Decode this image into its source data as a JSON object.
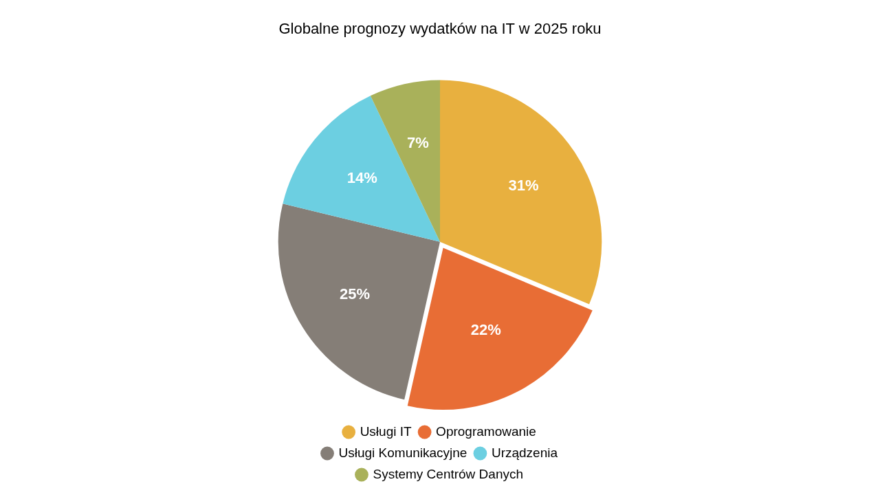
{
  "chart_data": {
    "type": "pie",
    "title": "Globalne prognozy wydatków na IT w 2025 roku",
    "categories": [
      "Usługi IT",
      "Oprogramowanie",
      "Usługi Komunikacyjne",
      "Urządzenia",
      "Systemy Centrów Danych"
    ],
    "values": [
      31,
      22,
      25,
      14,
      7
    ],
    "colors": [
      "#e8b03f",
      "#e86d35",
      "#857e77",
      "#6ccfe1",
      "#a9b15a"
    ],
    "value_labels": [
      "31%",
      "22%",
      "25%",
      "14%",
      "7%"
    ],
    "legend": "bottom"
  }
}
